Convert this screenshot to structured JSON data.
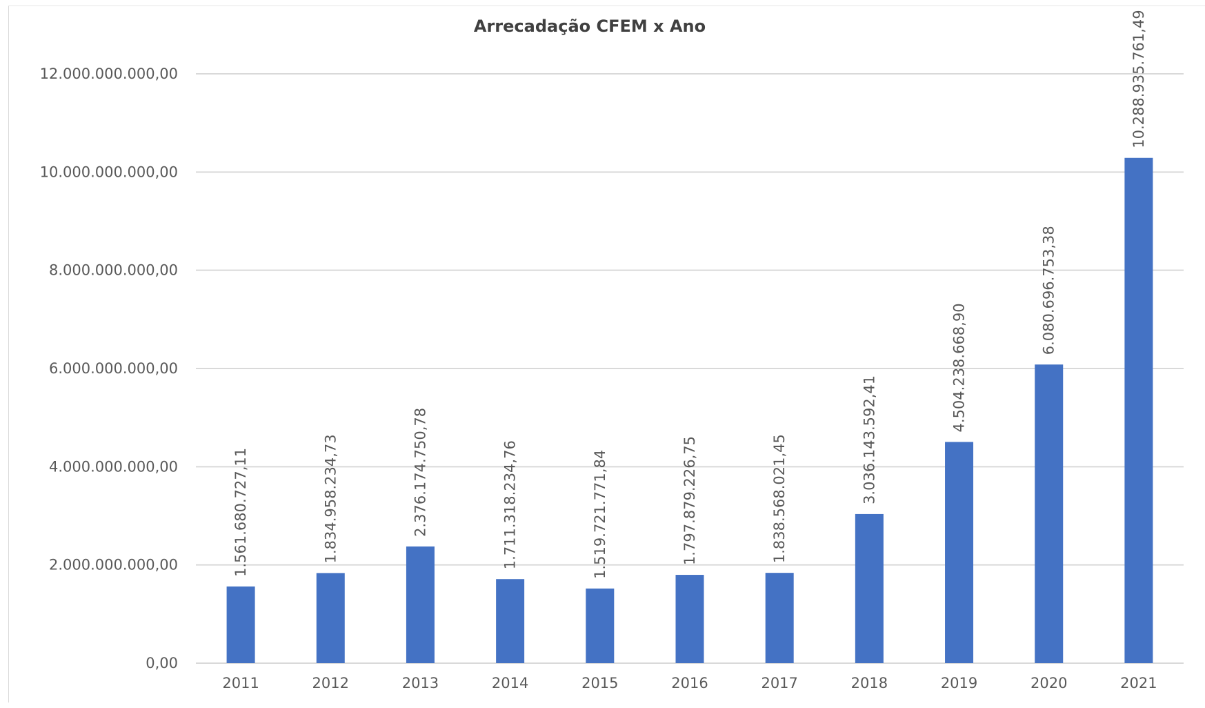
{
  "chart_data": {
    "type": "bar",
    "title": "Arrecadação CFEM x Ano",
    "xlabel": "",
    "ylabel": "",
    "categories": [
      "2011",
      "2012",
      "2013",
      "2014",
      "2015",
      "2016",
      "2017",
      "2018",
      "2019",
      "2020",
      "2021"
    ],
    "values": [
      1561680727.11,
      1834958234.73,
      2376174750.78,
      1711318234.76,
      1519721771.84,
      1797879226.75,
      1838568021.45,
      3036143592.41,
      4504238668.9,
      6080696753.38,
      10288935761.49
    ],
    "data_labels": [
      "1.561.680.727,11",
      "1.834.958.234,73",
      "2.376.174.750,78",
      "1.711.318.234,76",
      "1.519.721.771,84",
      "1.797.879.226,75",
      "1.838.568.021,45",
      "3.036.143.592,41",
      "4.504.238.668,90",
      "6.080.696.753,38",
      "10.288.935.761,49"
    ],
    "ylim": [
      0,
      12000000000
    ],
    "yticks": [
      0,
      2000000000,
      4000000000,
      6000000000,
      8000000000,
      10000000000,
      12000000000
    ],
    "ytick_labels": [
      "0,00",
      "2.000.000.000,00",
      "4.000.000.000,00",
      "6.000.000.000,00",
      "8.000.000.000,00",
      "10.000.000.000,00",
      "12.000.000.000,00"
    ],
    "grid": true,
    "legend": "none",
    "colors": {
      "bar": "#4472C4",
      "grid": "#d9d9d9",
      "text": "#595959",
      "title": "#404040"
    }
  }
}
